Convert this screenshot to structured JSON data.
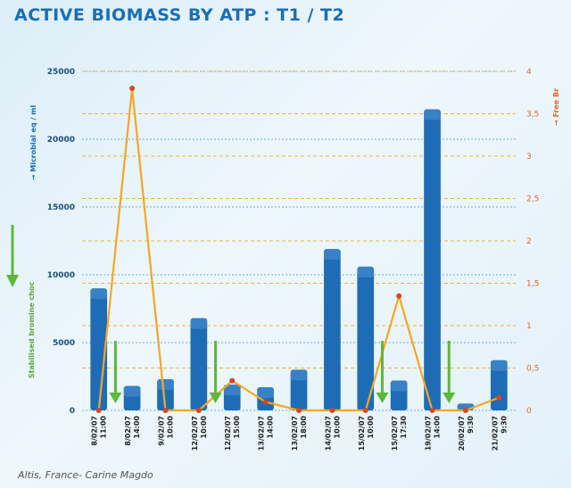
{
  "title": "ACTIVE BIOMASS BY ATP : T1 / T2",
  "source": "Altis, France- Carine Magdo",
  "colors": {
    "bar": "#1e6cb6",
    "bar_highlight": "#4a90d0",
    "line": "#f5a623",
    "line_marker": "#d9451e",
    "arrow": "#5cb83a",
    "grid_left": "#6aaee0",
    "grid_right": "#f0b23a"
  },
  "chart_data": {
    "type": "bar",
    "title": "ACTIVE BIOMASS BY ATP : T1 / T2",
    "categories": [
      "8/02/07 11:00",
      "8/02/07 14:00",
      "9/02/07 10:00",
      "12/02/07 10:00",
      "12/02/07 15:00",
      "13/02/07 14:00",
      "13/02/07 18:00",
      "14/02/07 10:00",
      "15/02/07 10:00",
      "15/02/07 17:30",
      "19/02/07 14:00",
      "20/02/07 9:30",
      "21/02/07 9:30"
    ],
    "y_left_label": "→ Microbial eq / ml",
    "y_right_label": "→ Free Br",
    "green_label": "Stabilised bromine choc",
    "ylim_left": [
      0,
      25000
    ],
    "ylim_right": [
      0,
      4
    ],
    "left_ticks": [
      "0",
      "5000",
      "10000",
      "15000",
      "20000",
      "25000"
    ],
    "right_ticks": [
      "0",
      "0,5",
      "1",
      "1,5",
      "2",
      "2,5",
      "3",
      "3,5",
      "4"
    ],
    "series": [
      {
        "kind": "bar",
        "axis": "left",
        "values": [
          9000,
          1800,
          2300,
          6800,
          1900,
          1700,
          3000,
          11900,
          10600,
          2200,
          22200,
          500,
          3700
        ]
      },
      {
        "kind": "line",
        "axis": "right",
        "values": [
          0,
          3.8,
          0,
          0,
          0.35,
          0.1,
          0,
          0,
          0,
          1.35,
          0,
          0,
          0.15
        ]
      }
    ],
    "arrows_after_category": [
      0,
      3,
      8,
      10
    ],
    "grid": true
  }
}
